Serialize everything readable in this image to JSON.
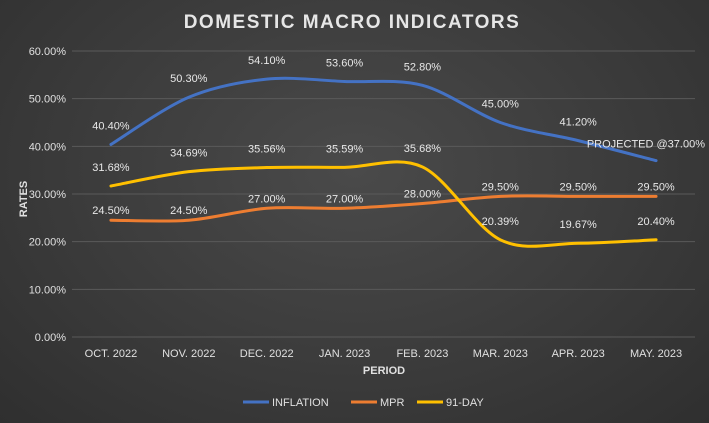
{
  "chart_data": {
    "type": "line",
    "title": "DOMESTIC MACRO INDICATORS",
    "xlabel": "PERIOD",
    "ylabel": "RATES",
    "categories": [
      "OCT. 2022",
      "NOV. 2022",
      "DEC. 2022",
      "JAN. 2023",
      "FEB. 2023",
      "MAR. 2023",
      "APR. 2023",
      "MAY. 2023"
    ],
    "y_ticks": [
      "0.00%",
      "10.00%",
      "20.00%",
      "30.00%",
      "40.00%",
      "50.00%",
      "60.00%"
    ],
    "ylim": [
      0,
      60
    ],
    "grid": true,
    "legend_position": "bottom",
    "series": [
      {
        "name": "INFLATION",
        "color": "#4472c4",
        "values": [
          40.4,
          50.3,
          54.1,
          53.6,
          52.8,
          45.0,
          41.2,
          37.0
        ],
        "labels": [
          "40.40%",
          "50.30%",
          "54.10%",
          "53.60%",
          "52.80%",
          "45.00%",
          "41.20%",
          "PROJECTED @37.00%"
        ]
      },
      {
        "name": "MPR",
        "color": "#ed7d31",
        "values": [
          24.5,
          24.5,
          27.0,
          27.0,
          28.0,
          29.5,
          29.5,
          29.5
        ],
        "labels": [
          "24.50%",
          "24.50%",
          "27.00%",
          "27.00%",
          "28.00%",
          "29.50%",
          "29.50%",
          "29.50%"
        ]
      },
      {
        "name": "91-DAY",
        "color": "#ffc000",
        "values": [
          31.68,
          34.69,
          35.56,
          35.59,
          35.68,
          20.39,
          19.67,
          20.4
        ],
        "labels": [
          "31.68%",
          "34.69%",
          "35.56%",
          "35.59%",
          "35.68%",
          "20.39%",
          "19.67%",
          "20.40%"
        ]
      }
    ]
  }
}
